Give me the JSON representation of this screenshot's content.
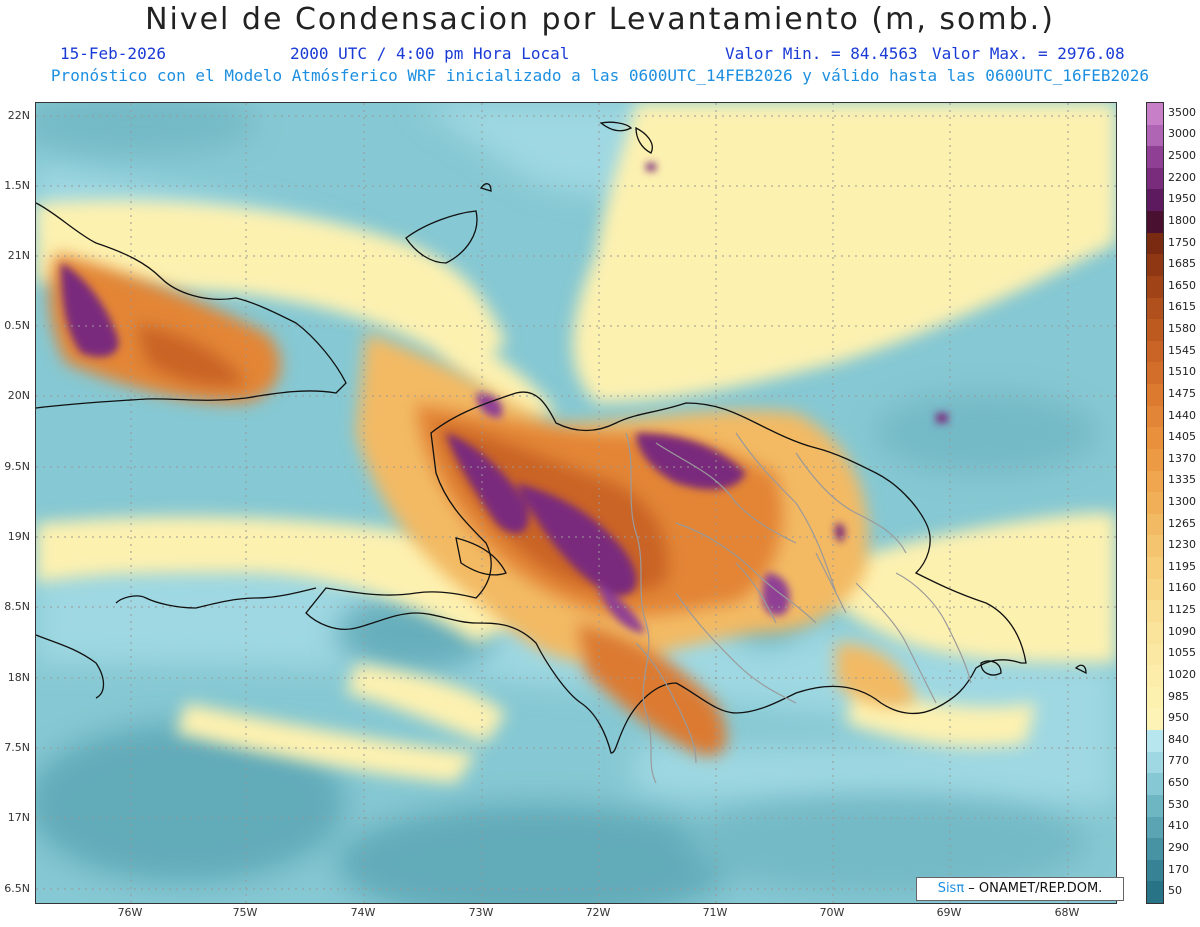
{
  "header": {
    "title": "Nivel de Condensacion por Levantamiento (m, somb.)",
    "date": "15-Feb-2026",
    "time": "2000 UTC / 4:00 pm Hora Local",
    "min_value": "Valor Min. = 84.4563",
    "max_value": "Valor Max. = 2976.08",
    "forecast_note": "Pronóstico con el Modelo Atmósferico WRF inicializado a las 0600UTC_14FEB2026 y válido hasta las  0600UTC_16FEB2026"
  },
  "axes": {
    "lat_labels": [
      "22N",
      "1.5N",
      "21N",
      "0.5N",
      "20N",
      "9.5N",
      "19N",
      "8.5N",
      "18N",
      "7.5N",
      "17N",
      "6.5N"
    ],
    "lon_labels": [
      "76W",
      "75W",
      "74W",
      "73W",
      "72W",
      "71W",
      "70W",
      "69W",
      "68W"
    ]
  },
  "colorbar": {
    "labels": [
      "3500",
      "3000",
      "2500",
      "2200",
      "1950",
      "1800",
      "1750",
      "1685",
      "1650",
      "1615",
      "1580",
      "1545",
      "1510",
      "1475",
      "1440",
      "1405",
      "1370",
      "1335",
      "1300",
      "1265",
      "1230",
      "1195",
      "1160",
      "1125",
      "1090",
      "1055",
      "1020",
      "985",
      "950",
      "840",
      "770",
      "650",
      "530",
      "410",
      "290",
      "170",
      "50"
    ],
    "colors": [
      "#c77fc7",
      "#b065b4",
      "#8f3f94",
      "#7a2c7c",
      "#5e1a5f",
      "#4a1030",
      "#7a2a10",
      "#8e3712",
      "#a04418",
      "#b0501c",
      "#bd5a20",
      "#c96426",
      "#d36e2a",
      "#dc7a30",
      "#e38536",
      "#e8903c",
      "#ec9b44",
      "#efa64e",
      "#f1b058",
      "#f3ba64",
      "#f5c46f",
      "#f7cd7a",
      "#f8d585",
      "#f9dd90",
      "#fae39a",
      "#fbe9a3",
      "#fcedaa",
      "#fdf1b0",
      "#fdf3b6",
      "#b8e6ee",
      "#9fd8e2",
      "#86c8d3",
      "#6fb6c3",
      "#5aa4b3",
      "#4893a3",
      "#378395",
      "#287486"
    ]
  },
  "credit": {
    "brand": "Sisπ",
    "text": " – ONAMET/REP.DOM."
  }
}
